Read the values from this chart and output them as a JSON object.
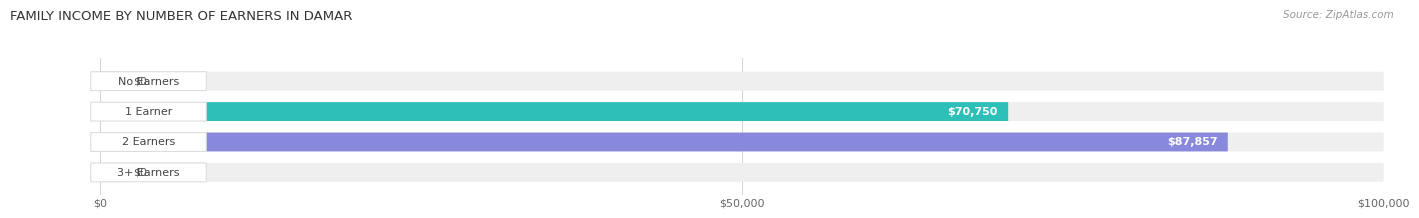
{
  "title": "FAMILY INCOME BY NUMBER OF EARNERS IN DAMAR",
  "source": "Source: ZipAtlas.com",
  "categories": [
    "No Earners",
    "1 Earner",
    "2 Earners",
    "3+ Earners"
  ],
  "values": [
    0,
    70750,
    87857,
    0
  ],
  "value_labels": [
    "$0",
    "$70,750",
    "$87,857",
    "$0"
  ],
  "bar_colors": [
    "#c9a0cc",
    "#2dbfb8",
    "#8888dd",
    "#f4a0b8"
  ],
  "bg_color": "#efefef",
  "xlim": [
    0,
    100000
  ],
  "xtick_values": [
    0,
    50000,
    100000
  ],
  "xtick_labels": [
    "$0",
    "$50,000",
    "$100,000"
  ],
  "title_fontsize": 9.5,
  "source_fontsize": 7.5,
  "bar_height": 0.62,
  "fig_width": 14.06,
  "fig_height": 2.32
}
